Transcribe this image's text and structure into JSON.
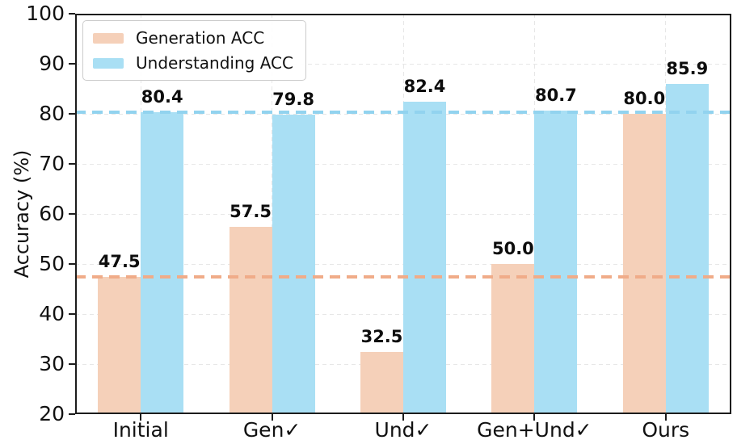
{
  "chart_data": {
    "type": "bar",
    "title": "",
    "xlabel": "",
    "ylabel": "Accuracy (%)",
    "ylim": [
      20,
      100
    ],
    "yticks": [
      "20",
      "30",
      "40",
      "50",
      "60",
      "70",
      "80",
      "90",
      "100"
    ],
    "categories": [
      "Initial",
      "Gen✓",
      "Und✓",
      "Gen+Und✓",
      "Ours"
    ],
    "grid": true,
    "legend_position": "upper left",
    "series": [
      {
        "name": "Generation ACC",
        "color": "#F5D0B9",
        "values": [
          47.5,
          57.5,
          32.5,
          50.0,
          80.0
        ],
        "labels": [
          "47.5",
          "57.5",
          "32.5",
          "50.0",
          "80.0"
        ],
        "ref_line": {
          "value": 47.5,
          "color": "#F0AC89"
        }
      },
      {
        "name": "Understanding ACC",
        "color": "#A9DFF4",
        "values": [
          80.4,
          79.8,
          82.4,
          80.7,
          85.9
        ],
        "labels": [
          "80.4",
          "79.8",
          "82.4",
          "80.7",
          "85.9"
        ],
        "ref_line": {
          "value": 80.4,
          "color": "#92D3EF"
        }
      }
    ],
    "colors": {
      "axis": "#1c1c1c",
      "grid": "#e7e7e7",
      "text": "#111111"
    }
  }
}
